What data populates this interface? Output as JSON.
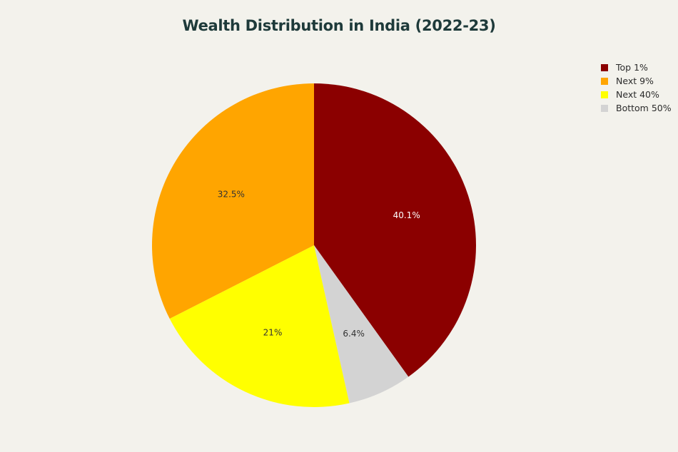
{
  "chart_data": {
    "type": "pie",
    "title": "Wealth Distribution in India (2022-23)",
    "slices": [
      {
        "label": "Top 1%",
        "value": 40.1,
        "display": "40.1%",
        "color": "#8b0000",
        "text_color": "#ffffff"
      },
      {
        "label": "Bottom 50%",
        "value": 6.4,
        "display": "6.4%",
        "color": "#d3d3d3",
        "text_color": "#333333"
      },
      {
        "label": "Next 40%",
        "value": 21,
        "display": "21%",
        "color": "#ffff00",
        "text_color": "#333333"
      },
      {
        "label": "Next 9%",
        "value": 32.5,
        "display": "32.5%",
        "color": "#ffa500",
        "text_color": "#333333"
      }
    ],
    "legend": {
      "position": "top-right",
      "entries": [
        {
          "label": "Top 1%",
          "color": "#8b0000"
        },
        {
          "label": "Next 9%",
          "color": "#ffa500"
        },
        {
          "label": "Next 40%",
          "color": "#ffff00"
        },
        {
          "label": "Bottom 50%",
          "color": "#d3d3d3"
        }
      ]
    },
    "start_angle": "12 o'clock",
    "direction": "clockwise"
  },
  "colors": {
    "background": "#f3f2ec",
    "title": "#1e3a3a"
  }
}
